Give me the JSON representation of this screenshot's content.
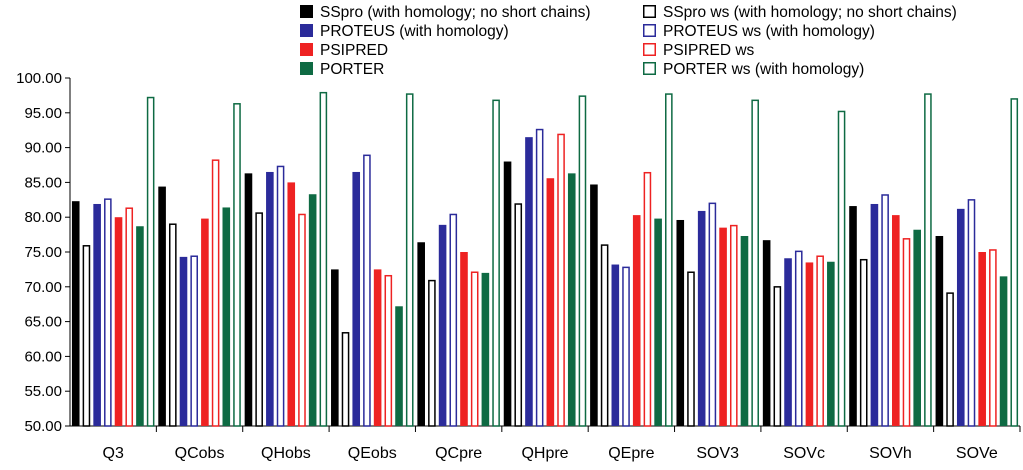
{
  "chart_data": {
    "type": "bar",
    "title": "",
    "xlabel": "",
    "ylabel": "",
    "ylim": [
      50,
      100
    ],
    "yticks": [
      50,
      55,
      60,
      65,
      70,
      75,
      80,
      85,
      90,
      95,
      100
    ],
    "ytick_labels": [
      "50.00",
      "55.00",
      "60.00",
      "65.00",
      "70.00",
      "75.00",
      "80.00",
      "85.00",
      "90.00",
      "95.00",
      "100.00"
    ],
    "grid": false,
    "legend_position": "top-right",
    "categories": [
      "Q3",
      "QCobs",
      "QHobs",
      "QEobs",
      "QCpre",
      "QHpre",
      "QEpre",
      "SOV3",
      "SOVc",
      "SOVh",
      "SOVe"
    ],
    "series": [
      {
        "name": "SSpro (with homology; no short chains)",
        "color": "#000000",
        "fill": "solid",
        "values": [
          82.3,
          84.4,
          86.3,
          72.5,
          76.4,
          88.0,
          84.7,
          79.6,
          76.7,
          81.6,
          77.3
        ]
      },
      {
        "name": "SSpro ws (with homology; no short chains)",
        "color": "#000000",
        "fill": "hollow",
        "values": [
          76.0,
          79.1,
          80.7,
          63.5,
          71.0,
          82.0,
          76.1,
          72.2,
          70.1,
          74.0,
          69.2
        ]
      },
      {
        "name": "PROTEUS (with homology)",
        "color": "#2b2b9a",
        "fill": "solid",
        "values": [
          81.9,
          74.3,
          86.5,
          86.5,
          78.9,
          91.5,
          73.2,
          80.9,
          74.1,
          81.9,
          81.2
        ]
      },
      {
        "name": "PROTEUS ws (with homology)",
        "color": "#2b2b9a",
        "fill": "hollow",
        "values": [
          82.7,
          74.5,
          87.4,
          89.0,
          80.5,
          92.7,
          72.9,
          82.1,
          75.2,
          83.3,
          82.6
        ]
      },
      {
        "name": "PSIPRED",
        "color": "#ee2222",
        "fill": "solid",
        "values": [
          80.0,
          79.8,
          85.0,
          72.5,
          75.0,
          85.6,
          80.3,
          78.5,
          73.5,
          80.3,
          75.0
        ]
      },
      {
        "name": "PSIPRED ws",
        "color": "#ee2222",
        "fill": "hollow",
        "values": [
          81.4,
          88.3,
          80.5,
          71.7,
          72.2,
          92.0,
          86.5,
          78.9,
          74.5,
          77.0,
          75.4
        ]
      },
      {
        "name": "PORTER",
        "color": "#0e6a43",
        "fill": "solid",
        "values": [
          78.7,
          81.4,
          83.3,
          67.2,
          72.0,
          86.3,
          79.8,
          77.3,
          73.6,
          78.2,
          71.5
        ]
      },
      {
        "name": "PORTER ws (with homology)",
        "color": "#0e6a43",
        "fill": "hollow",
        "values": [
          97.3,
          96.4,
          98.0,
          97.8,
          96.9,
          97.5,
          97.8,
          96.9,
          95.3,
          97.8,
          97.1
        ]
      }
    ],
    "legend": {
      "columns": [
        [
          "SSpro (with homology; no short chains)",
          "PROTEUS (with homology)",
          "PSIPRED",
          "PORTER"
        ],
        [
          "SSpro ws (with homology; no short chains)",
          "PROTEUS ws (with homology)",
          "PSIPRED ws",
          "PORTER ws (with homology)"
        ]
      ]
    }
  }
}
